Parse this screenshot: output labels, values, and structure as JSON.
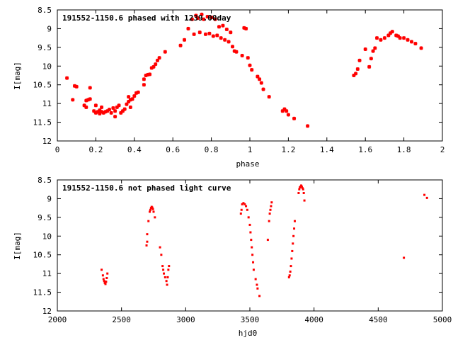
{
  "chart_data": [
    {
      "type": "scatter",
      "title": "191552-1150.6 phased with 1239.00day",
      "xlabel": "phase",
      "ylabel": "I[mag]",
      "xlim": [
        0,
        2
      ],
      "ylim": [
        12,
        8.5
      ],
      "y_inverted": true,
      "xticks": [
        "0",
        "0.2",
        "0.4",
        "0.6",
        "0.8",
        "1",
        "1.2",
        "1.4",
        "1.6",
        "1.8",
        "2"
      ],
      "yticks": [
        "8.5",
        "9",
        "9.5",
        "10",
        "10.5",
        "11",
        "11.5",
        "12"
      ],
      "marker_color": "#ff0000",
      "marker": "cross",
      "series": [
        {
          "points": [
            [
              0.05,
              10.32
            ],
            [
              0.08,
              10.9
            ],
            [
              0.09,
              10.53
            ],
            [
              0.1,
              10.55
            ],
            [
              0.14,
              11.05
            ],
            [
              0.15,
              11.1
            ],
            [
              0.15,
              10.92
            ],
            [
              0.16,
              10.9
            ],
            [
              0.17,
              10.58
            ],
            [
              0.17,
              10.88
            ],
            [
              0.19,
              11.2
            ],
            [
              0.2,
              11.25
            ],
            [
              0.2,
              11.05
            ],
            [
              0.21,
              11.22
            ],
            [
              0.22,
              11.18
            ],
            [
              0.22,
              11.27
            ],
            [
              0.23,
              11.1
            ],
            [
              0.23,
              11.22
            ],
            [
              0.24,
              11.25
            ],
            [
              0.25,
              11.22
            ],
            [
              0.26,
              11.2
            ],
            [
              0.27,
              11.16
            ],
            [
              0.28,
              11.25
            ],
            [
              0.29,
              11.12
            ],
            [
              0.3,
              11.35
            ],
            [
              0.3,
              11.2
            ],
            [
              0.31,
              11.1
            ],
            [
              0.32,
              11.05
            ],
            [
              0.33,
              11.25
            ],
            [
              0.34,
              11.2
            ],
            [
              0.35,
              11.15
            ],
            [
              0.36,
              11.02
            ],
            [
              0.37,
              10.95
            ],
            [
              0.37,
              10.82
            ],
            [
              0.38,
              11.1
            ],
            [
              0.38,
              10.9
            ],
            [
              0.39,
              10.88
            ],
            [
              0.4,
              10.8
            ],
            [
              0.41,
              10.72
            ],
            [
              0.42,
              10.7
            ],
            [
              0.45,
              10.35
            ],
            [
              0.45,
              10.5
            ],
            [
              0.46,
              10.25
            ],
            [
              0.47,
              10.23
            ],
            [
              0.48,
              10.22
            ],
            [
              0.49,
              10.05
            ],
            [
              0.5,
              10.02
            ],
            [
              0.51,
              9.95
            ],
            [
              0.52,
              9.85
            ],
            [
              0.53,
              9.78
            ],
            [
              0.56,
              9.62
            ],
            [
              0.64,
              9.45
            ],
            [
              0.66,
              9.3
            ],
            [
              0.68,
              9.0
            ],
            [
              0.7,
              8.75
            ],
            [
              0.71,
              9.15
            ],
            [
              0.72,
              8.65
            ],
            [
              0.73,
              8.72
            ],
            [
              0.74,
              9.1
            ],
            [
              0.75,
              8.62
            ],
            [
              0.76,
              8.75
            ],
            [
              0.77,
              9.15
            ],
            [
              0.78,
              8.68
            ],
            [
              0.79,
              9.13
            ],
            [
              0.8,
              8.7
            ],
            [
              0.81,
              9.2
            ],
            [
              0.82,
              8.75
            ],
            [
              0.83,
              9.18
            ],
            [
              0.84,
              8.95
            ],
            [
              0.85,
              9.25
            ],
            [
              0.86,
              8.92
            ],
            [
              0.87,
              9.3
            ],
            [
              0.88,
              9.02
            ],
            [
              0.89,
              9.35
            ],
            [
              0.9,
              9.1
            ],
            [
              0.91,
              9.48
            ],
            [
              0.92,
              9.6
            ],
            [
              0.93,
              9.62
            ],
            [
              0.96,
              9.72
            ],
            [
              0.97,
              8.98
            ],
            [
              0.98,
              9.0
            ],
            [
              0.99,
              9.78
            ],
            [
              1.0,
              9.98
            ],
            [
              1.01,
              10.1
            ],
            [
              1.04,
              10.28
            ],
            [
              1.05,
              10.35
            ],
            [
              1.06,
              10.45
            ],
            [
              1.07,
              10.62
            ],
            [
              1.1,
              10.82
            ],
            [
              1.17,
              11.2
            ],
            [
              1.18,
              11.15
            ],
            [
              1.19,
              11.2
            ],
            [
              1.2,
              11.3
            ],
            [
              1.23,
              11.4
            ],
            [
              1.3,
              11.6
            ],
            [
              1.54,
              10.25
            ],
            [
              1.55,
              10.2
            ],
            [
              1.56,
              10.08
            ],
            [
              1.57,
              9.85
            ],
            [
              1.6,
              9.55
            ],
            [
              1.62,
              10.02
            ],
            [
              1.63,
              9.8
            ],
            [
              1.64,
              9.6
            ],
            [
              1.65,
              9.52
            ],
            [
              1.66,
              9.25
            ],
            [
              1.68,
              9.3
            ],
            [
              1.7,
              9.25
            ],
            [
              1.72,
              9.18
            ],
            [
              1.73,
              9.12
            ],
            [
              1.74,
              9.08
            ],
            [
              1.76,
              9.18
            ],
            [
              1.77,
              9.2
            ],
            [
              1.78,
              9.25
            ],
            [
              1.8,
              9.25
            ],
            [
              1.82,
              9.3
            ],
            [
              1.84,
              9.35
            ],
            [
              1.86,
              9.4
            ],
            [
              1.89,
              9.52
            ]
          ]
        }
      ]
    },
    {
      "type": "scatter",
      "title": "191552-1150.6 not phased light curve",
      "xlabel": "hjd0",
      "ylabel": "I[mag]",
      "xlim": [
        2000,
        5000
      ],
      "ylim": [
        12,
        8.5
      ],
      "y_inverted": true,
      "xticks": [
        "2000",
        "2500",
        "3000",
        "3500",
        "4000",
        "4500",
        "5000"
      ],
      "yticks": [
        "8.5",
        "9",
        "9.5",
        "10",
        "10.5",
        "11",
        "11.5",
        "12"
      ],
      "marker_color": "#ff0000",
      "marker": "dot",
      "series": [
        {
          "points": [
            [
              2345,
              10.9
            ],
            [
              2355,
              11.05
            ],
            [
              2360,
              11.15
            ],
            [
              2365,
              11.2
            ],
            [
              2370,
              11.25
            ],
            [
              2375,
              11.28
            ],
            [
              2380,
              11.22
            ],
            [
              2385,
              11.12
            ],
            [
              2390,
              11.0
            ],
            [
              2695,
              10.25
            ],
            [
              2700,
              10.15
            ],
            [
              2700,
              9.95
            ],
            [
              2710,
              9.6
            ],
            [
              2720,
              9.35
            ],
            [
              2725,
              9.3
            ],
            [
              2730,
              9.25
            ],
            [
              2735,
              9.22
            ],
            [
              2740,
              9.24
            ],
            [
              2745,
              9.28
            ],
            [
              2750,
              9.35
            ],
            [
              2760,
              9.5
            ],
            [
              2800,
              10.3
            ],
            [
              2810,
              10.5
            ],
            [
              2820,
              10.8
            ],
            [
              2825,
              10.9
            ],
            [
              2830,
              11.0
            ],
            [
              2840,
              11.1
            ],
            [
              2850,
              11.2
            ],
            [
              2855,
              11.3
            ],
            [
              2860,
              11.1
            ],
            [
              2865,
              10.9
            ],
            [
              2870,
              10.8
            ],
            [
              3430,
              9.4
            ],
            [
              3435,
              9.3
            ],
            [
              3440,
              9.15
            ],
            [
              3450,
              9.12
            ],
            [
              3460,
              9.15
            ],
            [
              3470,
              9.2
            ],
            [
              3480,
              9.3
            ],
            [
              3490,
              9.5
            ],
            [
              3500,
              9.7
            ],
            [
              3505,
              9.9
            ],
            [
              3510,
              10.1
            ],
            [
              3515,
              10.3
            ],
            [
              3520,
              10.5
            ],
            [
              3525,
              10.7
            ],
            [
              3530,
              10.9
            ],
            [
              3545,
              11.15
            ],
            [
              3555,
              11.3
            ],
            [
              3560,
              11.4
            ],
            [
              3575,
              11.6
            ],
            [
              3640,
              10.1
            ],
            [
              3650,
              9.6
            ],
            [
              3655,
              9.4
            ],
            [
              3660,
              9.3
            ],
            [
              3665,
              9.2
            ],
            [
              3670,
              9.1
            ],
            [
              3805,
              11.1
            ],
            [
              3810,
              11.05
            ],
            [
              3815,
              10.95
            ],
            [
              3820,
              10.8
            ],
            [
              3825,
              10.6
            ],
            [
              3830,
              10.4
            ],
            [
              3835,
              10.2
            ],
            [
              3840,
              10.0
            ],
            [
              3845,
              9.8
            ],
            [
              3850,
              9.6
            ],
            [
              3880,
              8.85
            ],
            [
              3885,
              8.75
            ],
            [
              3890,
              8.7
            ],
            [
              3895,
              8.68
            ],
            [
              3900,
              8.65
            ],
            [
              3905,
              8.68
            ],
            [
              3910,
              8.72
            ],
            [
              3915,
              8.75
            ],
            [
              3920,
              8.85
            ],
            [
              3925,
              9.05
            ],
            [
              4700,
              10.58
            ],
            [
              4860,
              8.9
            ],
            [
              4880,
              8.98
            ]
          ]
        }
      ]
    }
  ]
}
